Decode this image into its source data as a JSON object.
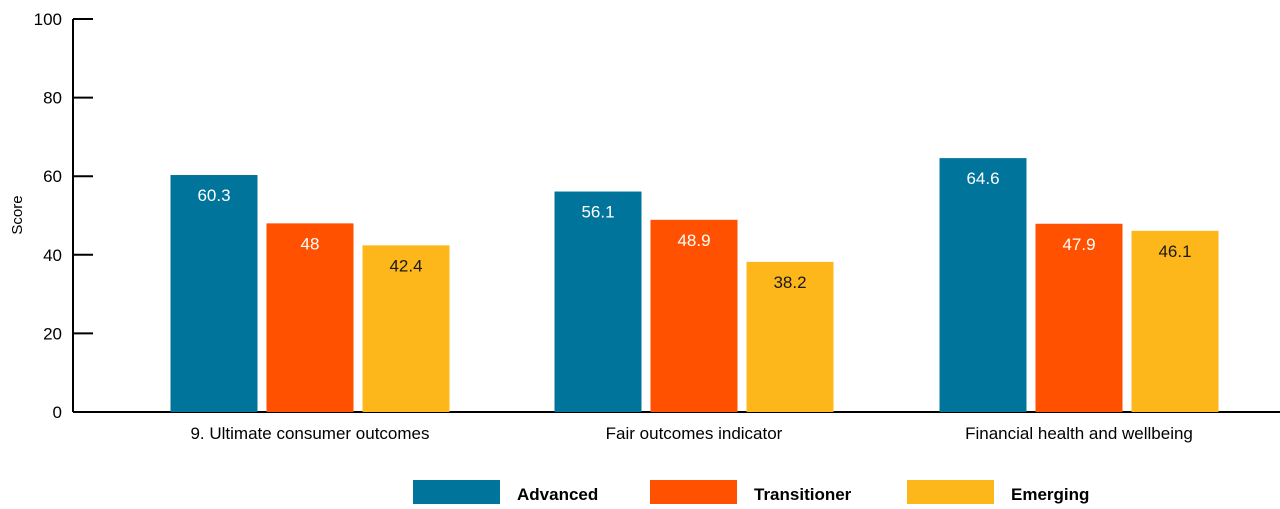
{
  "chart_data": {
    "type": "bar",
    "title": "",
    "xlabel": "",
    "ylabel": "Score",
    "ylim": [
      0,
      100
    ],
    "yticks": [
      0,
      20,
      40,
      60,
      80,
      100
    ],
    "grid": false,
    "legend_position": "bottom",
    "categories": [
      "9. Ultimate consumer outcomes",
      "Fair outcomes indicator",
      "Financial health and wellbeing"
    ],
    "series": [
      {
        "name": "Advanced",
        "color": "#00749A",
        "label_color": "#ffffff",
        "values": [
          60.3,
          56.1,
          64.6
        ],
        "labels": [
          "60.3",
          "56.1",
          "64.6"
        ]
      },
      {
        "name": "Transitioner",
        "color": "#FF5100",
        "label_color": "#ffffff",
        "values": [
          48,
          48.9,
          47.9
        ],
        "labels": [
          "48",
          "48.9",
          "47.9"
        ]
      },
      {
        "name": "Emerging",
        "color": "#FDB71A",
        "label_color": "#1a1a1a",
        "values": [
          42.4,
          38.2,
          46.1
        ],
        "labels": [
          "42.4",
          "38.2",
          "46.1"
        ]
      }
    ]
  }
}
